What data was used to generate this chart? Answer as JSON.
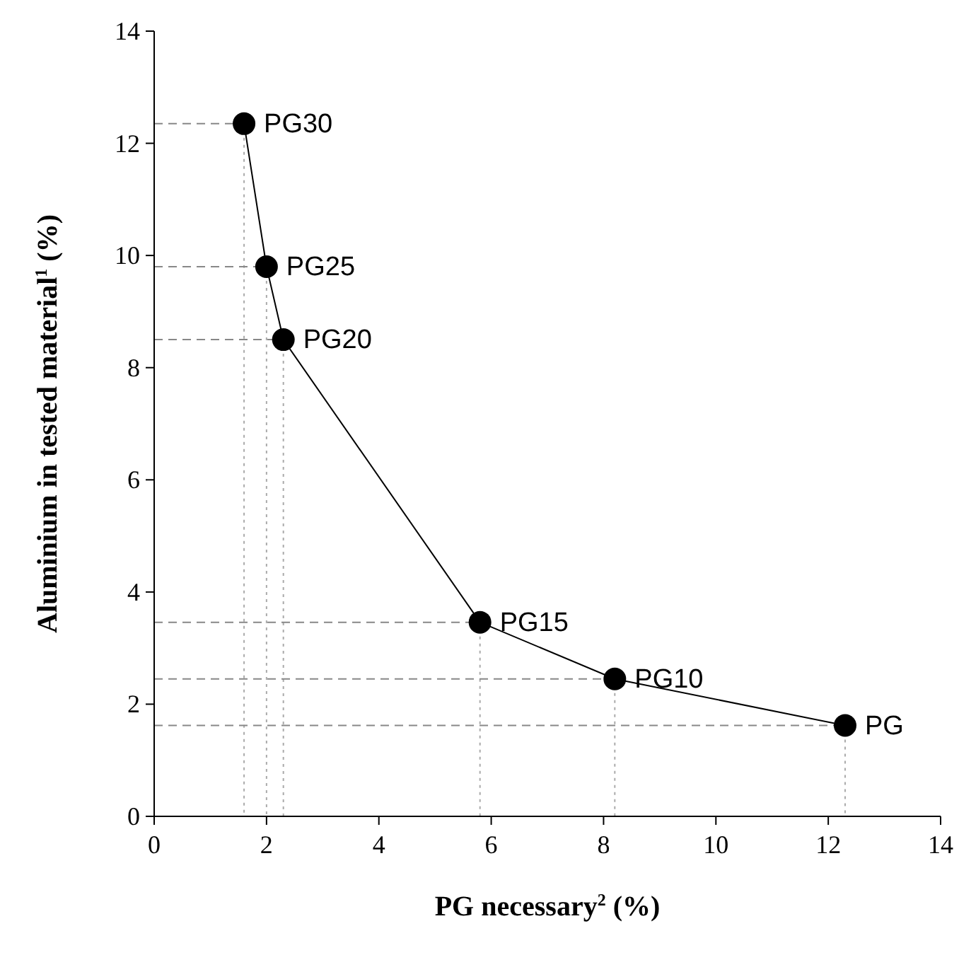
{
  "chart_data": {
    "type": "line",
    "xlabel": "PG necessary$^{2}$ (%)",
    "ylabel": "Aluminium in tested material$^{1}$ (%)",
    "x": [
      1.6,
      2.0,
      2.3,
      5.8,
      8.2,
      12.3
    ],
    "series": [
      {
        "x": [
          0,
          1.6
        ],
        "values": [
          12.35,
          12.35
        ],
        "color": "#888888",
        "line_style": "dashed",
        "marker": "none"
      },
      {
        "x": [
          1.6,
          1.6
        ],
        "values": [
          12.35,
          0
        ],
        "color": "#aaaaaa",
        "line_style": "dotted",
        "marker": "none"
      },
      {
        "x": [
          0,
          2.0
        ],
        "values": [
          9.8,
          9.8
        ],
        "color": "#888888",
        "line_style": "dashed",
        "marker": "none"
      },
      {
        "x": [
          2.0,
          2.0
        ],
        "values": [
          9.8,
          0
        ],
        "color": "#aaaaaa",
        "line_style": "dotted",
        "marker": "none"
      },
      {
        "x": [
          0,
          2.3
        ],
        "values": [
          8.5,
          8.5
        ],
        "color": "#888888",
        "line_style": "dashed",
        "marker": "none"
      },
      {
        "x": [
          2.3,
          2.3
        ],
        "values": [
          8.5,
          0
        ],
        "color": "#aaaaaa",
        "line_style": "dotted",
        "marker": "none"
      },
      {
        "x": [
          0,
          5.8
        ],
        "values": [
          3.46,
          3.46
        ],
        "color": "#888888",
        "line_style": "dashed",
        "marker": "none"
      },
      {
        "x": [
          5.8,
          5.8
        ],
        "values": [
          3.46,
          0
        ],
        "color": "#aaaaaa",
        "line_style": "dotted",
        "marker": "none"
      },
      {
        "x": [
          0,
          8.2
        ],
        "values": [
          2.45,
          2.45
        ],
        "color": "#888888",
        "line_style": "dashed",
        "marker": "none"
      },
      {
        "x": [
          8.2,
          8.2
        ],
        "values": [
          2.45,
          0
        ],
        "color": "#aaaaaa",
        "line_style": "dotted",
        "marker": "none"
      },
      {
        "x": [
          0,
          12.3
        ],
        "values": [
          1.62,
          1.62
        ],
        "color": "#888888",
        "line_style": "dashed",
        "marker": "none"
      },
      {
        "x": [
          12.3,
          12.3
        ],
        "values": [
          1.62,
          0
        ],
        "color": "#aaaaaa",
        "line_style": "dotted",
        "marker": "none"
      },
      {
        "color": "#000000",
        "values": [
          12.35,
          9.8,
          8.5,
          3.46,
          2.45,
          1.62
        ]
      }
    ],
    "xlim": [
      0,
      14
    ],
    "ylim": [
      0,
      14
    ],
    "xticks": [
      0,
      2,
      4,
      6,
      8,
      10,
      12,
      14
    ],
    "yticks": [
      0,
      2,
      4,
      6,
      8,
      10,
      12,
      14
    ],
    "marker": "circle",
    "line_style": "solid",
    "annotations": [
      {
        "text": "PG30",
        "x": 1.6,
        "y": 12.35
      },
      {
        "text": "PG25",
        "x": 2.0,
        "y": 9.8
      },
      {
        "text": "PG20",
        "x": 2.3,
        "y": 8.5
      },
      {
        "text": "PG15",
        "x": 5.8,
        "y": 3.46
      },
      {
        "text": "PG10",
        "x": 8.2,
        "y": 2.45
      },
      {
        "text": "PG",
        "x": 12.3,
        "y": 1.62
      }
    ]
  }
}
